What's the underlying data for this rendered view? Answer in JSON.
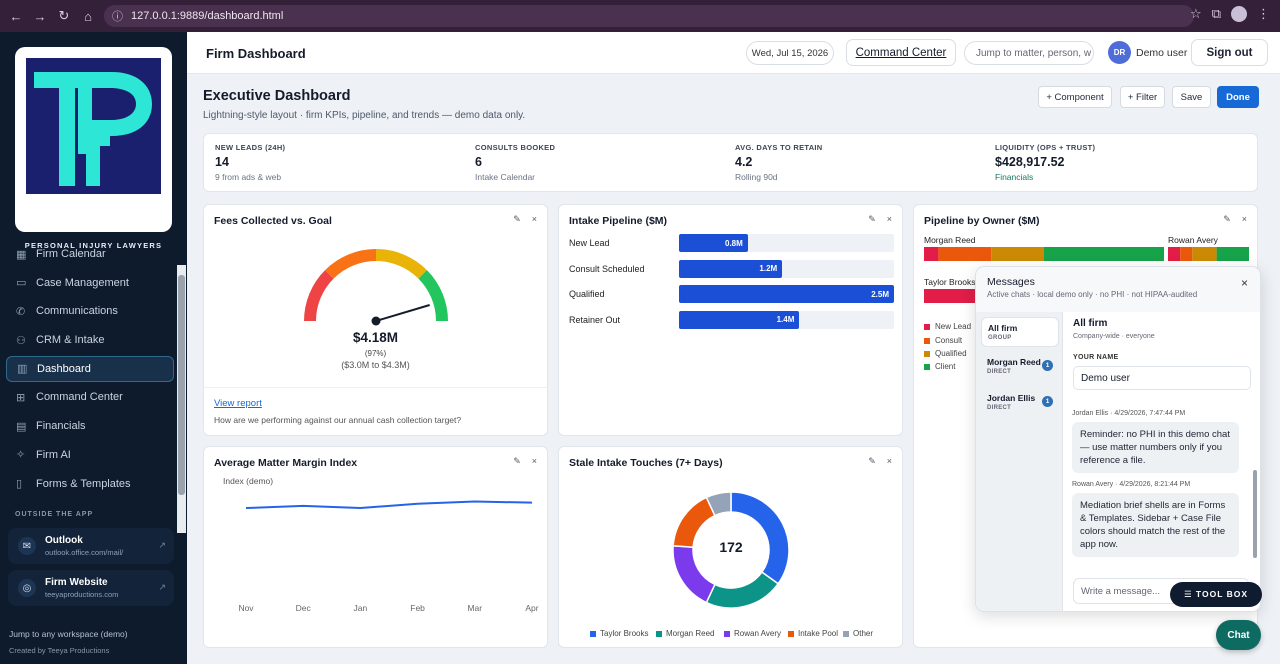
{
  "browser": {
    "url": "127.0.0.1:9889/dashboard.html"
  },
  "sidebar": {
    "brand": "PERSONAL INJURY LAWYERS",
    "logo_colors": {
      "bg": "#1a1f6e",
      "mark": "#2ee6d6"
    },
    "items": [
      {
        "label": "Firm Calendar",
        "icon": "calendar-icon"
      },
      {
        "label": "Case Management",
        "icon": "folder-icon"
      },
      {
        "label": "Communications",
        "icon": "phone-icon"
      },
      {
        "label": "CRM & Intake",
        "icon": "users-icon"
      },
      {
        "label": "Dashboard",
        "icon": "bar-chart-icon"
      },
      {
        "label": "Command Center",
        "icon": "grid-icon"
      },
      {
        "label": "Financials",
        "icon": "table-icon"
      },
      {
        "label": "Firm AI",
        "icon": "sparkle-icon"
      },
      {
        "label": "Forms & Templates",
        "icon": "document-icon"
      }
    ],
    "outside_label": "OUTSIDE THE APP",
    "external": [
      {
        "title": "Outlook",
        "url": "outlook.office.com/mail/",
        "icon": "mail-icon"
      },
      {
        "title": "Firm Website",
        "url": "teeyaproductions.com",
        "icon": "globe-icon"
      }
    ],
    "footer_jump": "Jump to any workspace (demo)",
    "footer_credit": "Created by Teeya Productions"
  },
  "topbar": {
    "title": "Firm Dashboard",
    "date": "Wed, Jul 15, 2026",
    "command_center": "Command Center",
    "jump_placeholder": "Jump to matter, person, w",
    "avatar_initials": "DR",
    "user": "Demo user",
    "signout": "Sign out"
  },
  "header": {
    "title": "Executive Dashboard",
    "subtitle": "Lightning-style layout · firm KPIs, pipeline, and trends — demo data only.",
    "buttons": {
      "component": "+ Component",
      "filter": "+ Filter",
      "save": "Save",
      "done": "Done"
    }
  },
  "kpis": [
    {
      "label": "NEW LEADS (24H)",
      "value": "14",
      "sub": "9 from ads & web"
    },
    {
      "label": "CONSULTS BOOKED",
      "value": "6",
      "sub": "Intake Calendar"
    },
    {
      "label": "AVG. DAYS TO RETAIN",
      "value": "4.2",
      "sub": "Rolling 90d"
    },
    {
      "label": "LIQUIDITY (OPS + TRUST)",
      "value": "$428,917.52",
      "sub": "Financials"
    }
  ],
  "card_actions": {
    "edit": "✎",
    "close": "×"
  },
  "fees": {
    "title": "Fees Collected vs. Goal",
    "value": "$4.18M",
    "percent": "(97%)",
    "range": "($3.0M to $4.3M)",
    "link": "View report",
    "note": "How are we performing against our annual cash collection target?"
  },
  "pipeline": {
    "title": "Intake Pipeline ($M)",
    "max": 2.5,
    "rows": [
      {
        "label": "New Lead",
        "value": 0.8,
        "display": "0.8M"
      },
      {
        "label": "Consult Scheduled",
        "value": 1.2,
        "display": "1.2M"
      },
      {
        "label": "Qualified",
        "value": 2.5,
        "display": "2.5M"
      },
      {
        "label": "Retainer Out",
        "value": 1.4,
        "display": "1.4M"
      }
    ]
  },
  "owners": {
    "title": "Pipeline by Owner ($M)",
    "names": [
      "Morgan Reed",
      "Rowan Avery",
      "Taylor Brooks"
    ],
    "legend": [
      {
        "label": "New Lead",
        "color": "#e11d48"
      },
      {
        "label": "Consult",
        "color": "#ea580c"
      },
      {
        "label": "Qualified",
        "color": "#ca8a04"
      },
      {
        "label": "Client",
        "color": "#16a34a"
      }
    ]
  },
  "margin": {
    "title": "Average Matter Margin Index",
    "ylabel": "Index (demo)"
  },
  "stale": {
    "title": "Stale Intake Touches (7+ Days)",
    "total": "172"
  },
  "messages": {
    "title": "Messages",
    "subtitle": "Active chats · local demo only · no PHI · not HIPAA-audited",
    "close": "×",
    "channels": [
      {
        "name": "All firm",
        "type": "GROUP",
        "badge": ""
      },
      {
        "name": "Morgan Reed",
        "type": "DIRECT",
        "badge": "1"
      },
      {
        "name": "Jordan Ellis",
        "type": "DIRECT",
        "badge": "1"
      }
    ],
    "active_title": "All firm",
    "active_sub": "Company-wide · everyone",
    "name_label": "YOUR NAME",
    "name_value": "Demo user",
    "thread": [
      {
        "meta": "Jordan Ellis · 4/29/2026, 7:47:44 PM",
        "text": "Reminder: no PHI in this demo chat — use matter numbers only if you reference a file."
      },
      {
        "meta": "Rowan Avery · 4/29/2026, 8:21:44 PM",
        "text": "Mediation brief shells are in Forms & Templates. Sidebar + Case File colors should match the rest of the app now."
      }
    ],
    "placeholder": "Write a message..."
  },
  "toolbox": "☰ TOOL BOX",
  "chat": "Chat",
  "chart_data": [
    {
      "type": "gauge",
      "title": "Fees Collected vs. Goal",
      "value": 4.18,
      "min": 3.0,
      "max": 4.3,
      "bands": [
        {
          "color": "#ef4444"
        },
        {
          "color": "#f97316"
        },
        {
          "color": "#eab308"
        },
        {
          "color": "#22c55e"
        }
      ]
    },
    {
      "type": "bar",
      "title": "Intake Pipeline ($M)",
      "categories": [
        "New Lead",
        "Consult Scheduled",
        "Qualified",
        "Retainer Out"
      ],
      "values": [
        0.8,
        1.2,
        2.5,
        1.4
      ]
    },
    {
      "type": "bar",
      "title": "Pipeline by Owner ($M)",
      "stacked": true,
      "categories": [
        "Morgan Reed",
        "Rowan Avery",
        "Taylor Brooks"
      ],
      "series": [
        {
          "name": "New Lead",
          "color": "#e11d48",
          "values": [
            0.3,
            0.15,
            0.7
          ]
        },
        {
          "name": "Consult",
          "color": "#ea580c",
          "values": [
            1.1,
            0.15,
            0
          ]
        },
        {
          "name": "Qualified",
          "color": "#ca8a04",
          "values": [
            1.1,
            0.3,
            0
          ]
        },
        {
          "name": "Client",
          "color": "#16a34a",
          "values": [
            2.5,
            0.4,
            0
          ]
        }
      ]
    },
    {
      "type": "line",
      "title": "Average Matter Margin Index",
      "ylabel": "Index (demo)",
      "categories": [
        "Nov",
        "Dec",
        "Jan",
        "Feb",
        "Mar",
        "Apr"
      ],
      "values": [
        62,
        64,
        62,
        66,
        68,
        67
      ],
      "ylim": [
        0,
        100
      ]
    },
    {
      "type": "pie",
      "title": "Stale Intake Touches (7+ Days)",
      "center_label": "172",
      "slices": [
        {
          "label": "Taylor Brooks",
          "value": 60,
          "color": "#2563eb"
        },
        {
          "label": "Morgan Reed",
          "value": 38,
          "color": "#0d9488"
        },
        {
          "label": "Rowan Avery",
          "value": 33,
          "color": "#7c3aed"
        },
        {
          "label": "Intake Pool",
          "value": 29,
          "color": "#ea580c"
        },
        {
          "label": "Other",
          "value": 12,
          "color": "#94a3b8"
        }
      ]
    }
  ]
}
